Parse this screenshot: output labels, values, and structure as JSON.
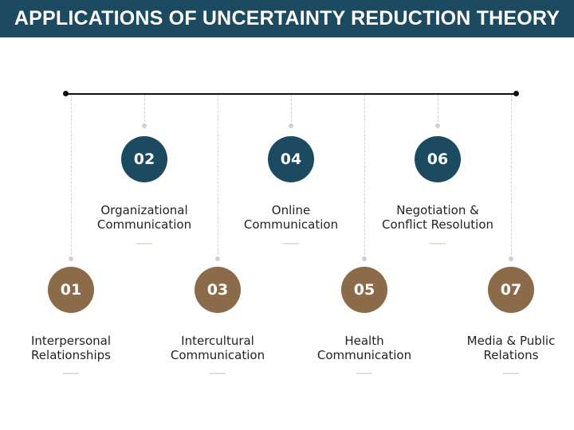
{
  "title": "APPLICATIONS OF UNCERTAINTY REDUCTION THEORY",
  "colors": {
    "title_bar": "#1c4a60",
    "teal_badge": "#1c4a60",
    "brown_badge": "#8c6b4b",
    "timeline": "#111111",
    "connector": "#cfcfcf"
  },
  "items": [
    {
      "number": "01",
      "line1": "Interpersonal",
      "line2": "Relationships",
      "color": "brown"
    },
    {
      "number": "02",
      "line1": "Organizational",
      "line2": "Communication",
      "color": "teal"
    },
    {
      "number": "03",
      "line1": "Intercultural",
      "line2": "Communication",
      "color": "brown"
    },
    {
      "number": "04",
      "line1": "Online",
      "line2": "Communication",
      "color": "teal"
    },
    {
      "number": "05",
      "line1": "Health",
      "line2": "Communication",
      "color": "brown"
    },
    {
      "number": "06",
      "line1": "Negotiation &",
      "line2": "Conflict Resolution",
      "color": "teal"
    },
    {
      "number": "07",
      "line1": "Media & Public",
      "line2": "Relations",
      "color": "brown"
    }
  ]
}
